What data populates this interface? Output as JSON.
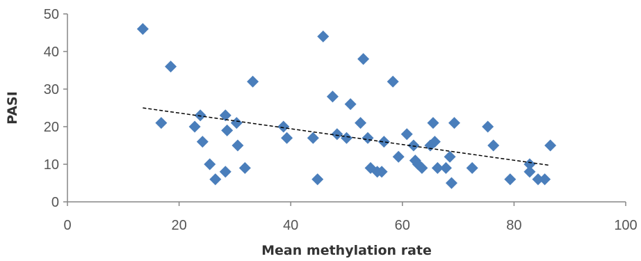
{
  "chart_data": {
    "type": "scatter",
    "title": "",
    "xlabel": "Mean methylation rate",
    "ylabel": "PASI",
    "xlim": [
      0,
      100
    ],
    "ylim": [
      0,
      50
    ],
    "xticks": [
      0,
      20,
      40,
      60,
      80,
      100
    ],
    "yticks": [
      0,
      10,
      20,
      30,
      40,
      50
    ],
    "grid": false,
    "legend": "none",
    "marker_color": "#4A7EBB",
    "trendline_color": "#000000",
    "trendline": {
      "style": "dashed",
      "x": [
        13.5,
        86.5
      ],
      "y": [
        25,
        9.7
      ]
    },
    "points": [
      {
        "x": 13.5,
        "y": 46
      },
      {
        "x": 16.8,
        "y": 21
      },
      {
        "x": 18.5,
        "y": 36
      },
      {
        "x": 22.8,
        "y": 20
      },
      {
        "x": 23.8,
        "y": 23
      },
      {
        "x": 24.2,
        "y": 16
      },
      {
        "x": 25.5,
        "y": 10
      },
      {
        "x": 26.5,
        "y": 6
      },
      {
        "x": 28.3,
        "y": 23
      },
      {
        "x": 28.3,
        "y": 8
      },
      {
        "x": 28.6,
        "y": 19
      },
      {
        "x": 30.3,
        "y": 21
      },
      {
        "x": 30.5,
        "y": 15
      },
      {
        "x": 31.8,
        "y": 9
      },
      {
        "x": 33.2,
        "y": 32
      },
      {
        "x": 38.7,
        "y": 20
      },
      {
        "x": 39.3,
        "y": 17
      },
      {
        "x": 44.0,
        "y": 17
      },
      {
        "x": 44.8,
        "y": 6
      },
      {
        "x": 45.8,
        "y": 44
      },
      {
        "x": 47.5,
        "y": 28
      },
      {
        "x": 48.3,
        "y": 18
      },
      {
        "x": 50.0,
        "y": 17
      },
      {
        "x": 50.7,
        "y": 26
      },
      {
        "x": 52.5,
        "y": 21
      },
      {
        "x": 53.0,
        "y": 38
      },
      {
        "x": 53.8,
        "y": 17
      },
      {
        "x": 54.3,
        "y": 9
      },
      {
        "x": 55.5,
        "y": 8
      },
      {
        "x": 56.3,
        "y": 8
      },
      {
        "x": 56.7,
        "y": 16
      },
      {
        "x": 58.3,
        "y": 32
      },
      {
        "x": 59.3,
        "y": 12
      },
      {
        "x": 60.8,
        "y": 18
      },
      {
        "x": 62.0,
        "y": 15
      },
      {
        "x": 62.3,
        "y": 11
      },
      {
        "x": 62.8,
        "y": 10
      },
      {
        "x": 63.5,
        "y": 9
      },
      {
        "x": 65.0,
        "y": 15
      },
      {
        "x": 65.5,
        "y": 21
      },
      {
        "x": 65.8,
        "y": 16
      },
      {
        "x": 66.3,
        "y": 9
      },
      {
        "x": 67.8,
        "y": 9
      },
      {
        "x": 68.5,
        "y": 12
      },
      {
        "x": 68.8,
        "y": 5
      },
      {
        "x": 69.3,
        "y": 21
      },
      {
        "x": 72.5,
        "y": 9
      },
      {
        "x": 75.3,
        "y": 20
      },
      {
        "x": 76.3,
        "y": 15
      },
      {
        "x": 79.3,
        "y": 6
      },
      {
        "x": 82.8,
        "y": 10
      },
      {
        "x": 82.8,
        "y": 8
      },
      {
        "x": 84.3,
        "y": 6
      },
      {
        "x": 85.5,
        "y": 6
      },
      {
        "x": 86.5,
        "y": 15
      }
    ]
  }
}
